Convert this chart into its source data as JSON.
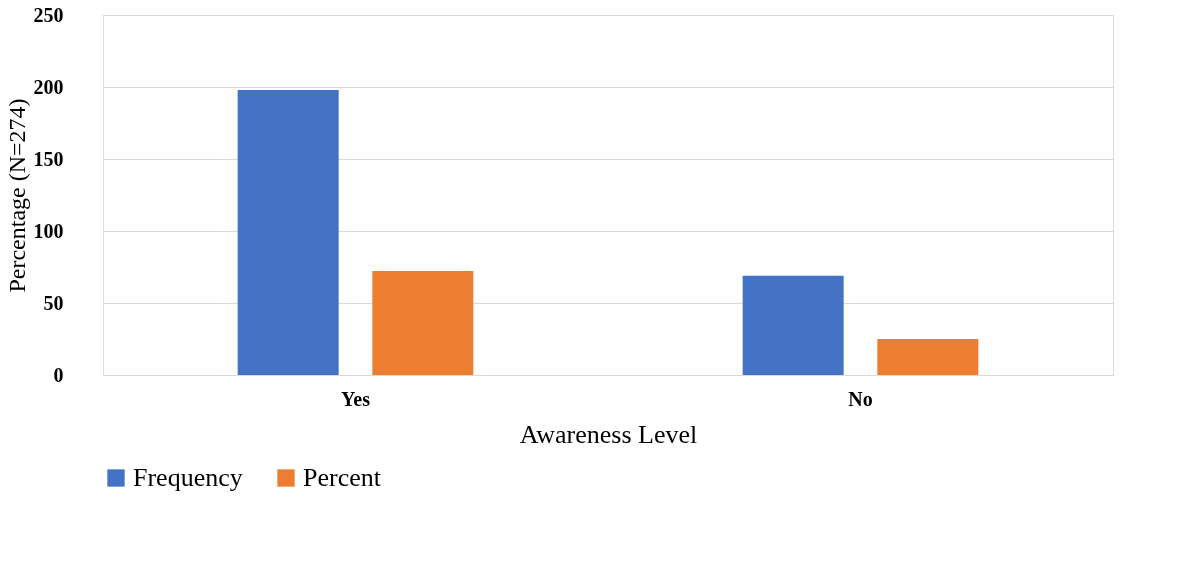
{
  "chart_data": {
    "type": "bar",
    "xlabel": "Awareness Level",
    "ylabel": "Percentage (N=274)",
    "categories": [
      "Yes",
      "No"
    ],
    "series": [
      {
        "name": "Frequency",
        "color": "#4472c4",
        "values": [
          198,
          69
        ]
      },
      {
        "name": "Percent",
        "color": "#ed7d31",
        "values": [
          72.3,
          25
        ]
      }
    ],
    "ylim": [
      0,
      250
    ],
    "yticks": [
      0,
      50,
      100,
      150,
      200,
      250
    ],
    "grid": "y",
    "legend": "bottom"
  }
}
